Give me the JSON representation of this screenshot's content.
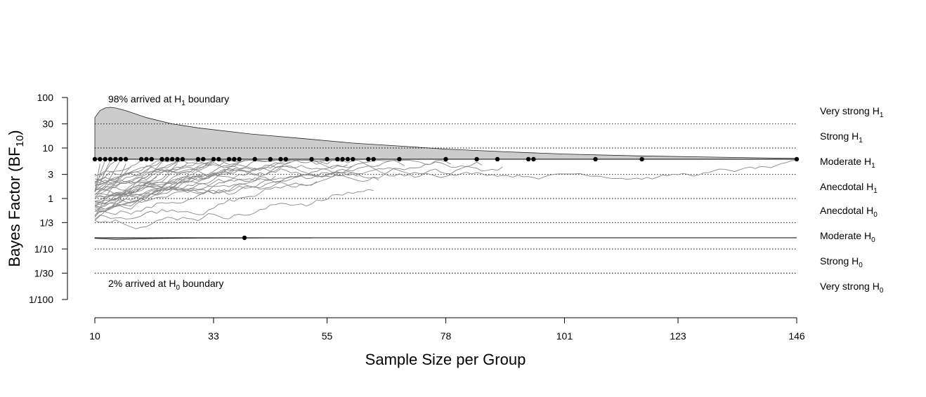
{
  "chart_data": {
    "type": "line",
    "title": "",
    "xlabel": "Sample Size per Group",
    "ylabel_main": "Bayes Factor",
    "ylabel_paren_open": "(",
    "ylabel_bf": "BF",
    "ylabel_bf_sub": "10",
    "ylabel_paren_close": ")",
    "y_scale": "log",
    "xlim": [
      10,
      146
    ],
    "ylim": [
      0.01,
      100
    ],
    "x_ticks": [
      10,
      33,
      55,
      78,
      101,
      123,
      146
    ],
    "x_tick_labels": [
      "10",
      "33",
      "55",
      "78",
      "101",
      "123",
      "146"
    ],
    "y_ticks": [
      100,
      30,
      10,
      3,
      1,
      0.3333,
      0.1,
      0.0333,
      0.01
    ],
    "y_tick_labels": [
      "100",
      "30",
      "10",
      "3",
      "1",
      "1/3",
      "1/10",
      "1/30",
      "1/100"
    ],
    "dotted_reference_lines": [
      30,
      10,
      3,
      1,
      0.3333,
      0.1,
      0.0333
    ],
    "upper_boundary": 6,
    "lower_boundary": 0.1667,
    "evidence_categories": [
      {
        "main": "Very strong H",
        "sub": "1"
      },
      {
        "main": "Strong H",
        "sub": "1"
      },
      {
        "main": "Moderate H",
        "sub": "1"
      },
      {
        "main": "Anecdotal H",
        "sub": "1"
      },
      {
        "main": "Anecdotal H",
        "sub": "0"
      },
      {
        "main": "Moderate H",
        "sub": "0"
      },
      {
        "main": "Strong H",
        "sub": "0"
      },
      {
        "main": "Very strong H",
        "sub": "0"
      }
    ],
    "annotation_top": {
      "prefix": "98% arrived at H",
      "sub": "1",
      "suffix": " boundary"
    },
    "annotation_bottom": {
      "prefix": "2% arrived at H",
      "sub": "0",
      "suffix": " boundary"
    },
    "upper_density": [
      [
        10,
        40
      ],
      [
        11,
        55
      ],
      [
        12,
        62
      ],
      [
        13,
        64
      ],
      [
        14,
        62
      ],
      [
        16,
        55
      ],
      [
        20,
        40
      ],
      [
        25,
        30
      ],
      [
        30,
        25
      ],
      [
        40,
        19
      ],
      [
        50,
        15.5
      ],
      [
        60,
        12.5
      ],
      [
        70,
        10.8
      ],
      [
        78,
        9.5
      ],
      [
        90,
        8.4
      ],
      [
        101,
        7.6
      ],
      [
        115,
        7
      ],
      [
        130,
        6.6
      ],
      [
        146,
        6.2
      ]
    ],
    "lower_density": [
      [
        10,
        0.162
      ],
      [
        14,
        0.155
      ],
      [
        18,
        0.158
      ],
      [
        24,
        0.162
      ],
      [
        30,
        0.164
      ],
      [
        40,
        0.165
      ],
      [
        52,
        0.166
      ]
    ],
    "upper_boundary_hits_n": [
      10,
      11,
      12,
      13,
      14,
      15,
      16,
      19,
      20,
      21,
      23,
      24,
      25,
      26,
      27,
      30,
      31,
      33,
      34,
      36,
      37,
      38,
      41,
      44,
      46,
      47,
      52,
      55,
      57,
      58,
      59,
      60,
      63,
      64,
      69,
      78,
      84,
      88,
      94,
      95,
      107,
      116,
      146
    ],
    "lower_boundary_hits_n": [
      39
    ]
  }
}
